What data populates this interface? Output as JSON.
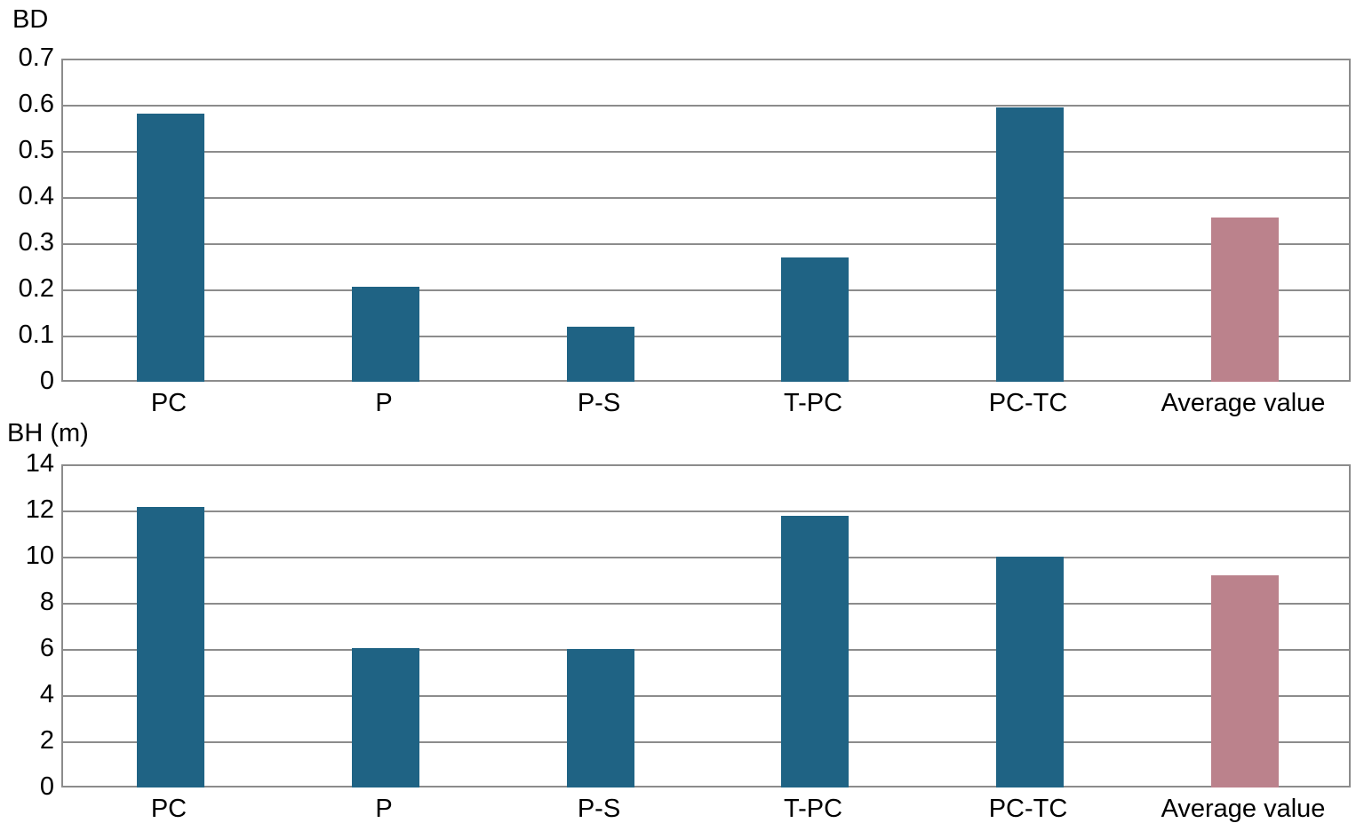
{
  "page": {
    "background": "#ffffff"
  },
  "colors": {
    "bar": "#1f6384",
    "average_bar": "#bb828c",
    "grid": "#8c8c8c",
    "text": "#000000"
  },
  "chart_data": [
    {
      "type": "bar",
      "title": "BD",
      "categories": [
        "PC",
        "P",
        "P-S",
        "T-PC",
        "PC-TC",
        "Average value"
      ],
      "values": [
        0.58,
        0.205,
        0.12,
        0.27,
        0.595,
        0.355
      ],
      "average_category": "Average value",
      "xlabel": "",
      "ylabel": "BD",
      "ylim": [
        0,
        0.7
      ],
      "ytick_step": 0.1,
      "yticks": [
        "0.7",
        "0.6",
        "0.5",
        "0.4",
        "0.3",
        "0.2",
        "0.1",
        "0"
      ],
      "grid": true,
      "legend_position": "none"
    },
    {
      "type": "bar",
      "title": "BH (m)",
      "categories": [
        "PC",
        "P",
        "P-S",
        "T-PC",
        "PC-TC",
        "Average value"
      ],
      "values": [
        12.15,
        6.05,
        6.0,
        11.75,
        10.0,
        9.2
      ],
      "average_category": "Average value",
      "xlabel": "",
      "ylabel": "BH (m)",
      "ylim": [
        0,
        14
      ],
      "ytick_step": 2,
      "yticks": [
        "14",
        "12",
        "10",
        "8",
        "6",
        "4",
        "2",
        "0"
      ],
      "grid": true,
      "legend_position": "none"
    }
  ]
}
